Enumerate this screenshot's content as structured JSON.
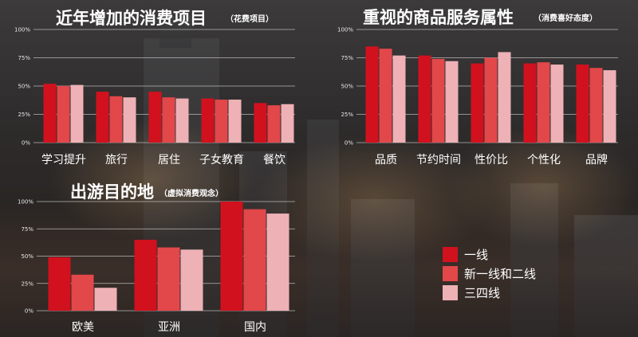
{
  "colors": {
    "series": [
      "#d2111e",
      "#e2474a",
      "#eeb1b6"
    ]
  },
  "legend": [
    "一线",
    "新一线和二线",
    "三四线"
  ],
  "chart_data": [
    {
      "id": "chart1",
      "type": "bar",
      "title": "近年增加的消费项目",
      "subtitle": "（花费项目）",
      "categories": [
        "学习提升",
        "旅行",
        "居住",
        "子女教育",
        "餐饮"
      ],
      "series": [
        {
          "name": "一线",
          "values": [
            52,
            45,
            45,
            39,
            35
          ]
        },
        {
          "name": "新一线和二线",
          "values": [
            50,
            41,
            40,
            38,
            33
          ]
        },
        {
          "name": "三四线",
          "values": [
            51,
            40,
            39,
            38,
            34
          ]
        }
      ],
      "ylim": [
        0,
        100
      ],
      "yticks": [
        "0%",
        "25%",
        "50%",
        "75%",
        "100%"
      ],
      "grid": true
    },
    {
      "id": "chart2",
      "type": "bar",
      "title": "重视的商品服务属性",
      "subtitle": "（消费喜好态度）",
      "categories": [
        "品质",
        "节约时间",
        "性价比",
        "个性化",
        "品牌"
      ],
      "series": [
        {
          "name": "一线",
          "values": [
            85,
            77,
            70,
            70,
            69
          ]
        },
        {
          "name": "新一线和二线",
          "values": [
            83,
            74,
            75,
            71,
            66
          ]
        },
        {
          "name": "三四线",
          "values": [
            77,
            72,
            80,
            69,
            64
          ]
        }
      ],
      "ylim": [
        0,
        100
      ],
      "yticks": [
        "0%",
        "25%",
        "50%",
        "75%",
        "100%"
      ],
      "grid": true
    },
    {
      "id": "chart3",
      "type": "bar",
      "title": "出游目的地",
      "subtitle": "（虚拟消费观念）",
      "categories": [
        "欧美",
        "亚洲",
        "国内"
      ],
      "series": [
        {
          "name": "一线",
          "values": [
            49,
            65,
            100
          ]
        },
        {
          "name": "新一线和二线",
          "values": [
            33,
            58,
            93
          ]
        },
        {
          "name": "三四线",
          "values": [
            21,
            56,
            89
          ]
        }
      ],
      "ylim": [
        0,
        100
      ],
      "yticks": [
        "0%",
        "25%",
        "50%",
        "75%",
        "100%"
      ],
      "grid": true
    }
  ]
}
